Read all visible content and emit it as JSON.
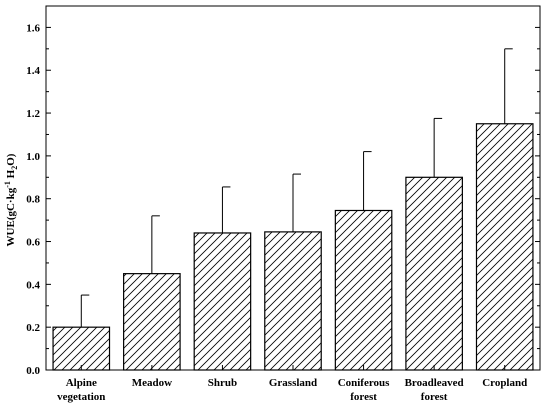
{
  "chart_data": {
    "type": "bar",
    "categories": [
      [
        "Alpine",
        "vegetation"
      ],
      [
        "Meadow"
      ],
      [
        "Shrub"
      ],
      [
        "Grassland"
      ],
      [
        "Coniferous",
        "forest"
      ],
      [
        "Broadleaved",
        "forest"
      ],
      [
        "Cropland"
      ]
    ],
    "values": [
      0.2,
      0.45,
      0.64,
      0.645,
      0.745,
      0.9,
      1.15
    ],
    "errors_upper": [
      0.35,
      0.72,
      0.855,
      0.915,
      1.02,
      1.175,
      1.5
    ],
    "ylabel": {
      "base": "WUE(gC",
      "dot": "·",
      "unit1": "kg",
      "sup": "-1",
      "space": " ",
      "unit2": "H",
      "sub": "2",
      "tail": "O)"
    },
    "xlabel": "",
    "ylim": [
      0.0,
      1.7
    ],
    "yticks": [
      "0.0",
      "0.2",
      "0.4",
      "0.6",
      "0.8",
      "1.0",
      "1.2",
      "1.4",
      "1.6"
    ],
    "grid": false,
    "fill_pattern": "diagonal-hatch",
    "colors": {
      "bar_stroke": "#000000",
      "hatch": "#000000",
      "bar_fill": "#ffffff"
    }
  }
}
